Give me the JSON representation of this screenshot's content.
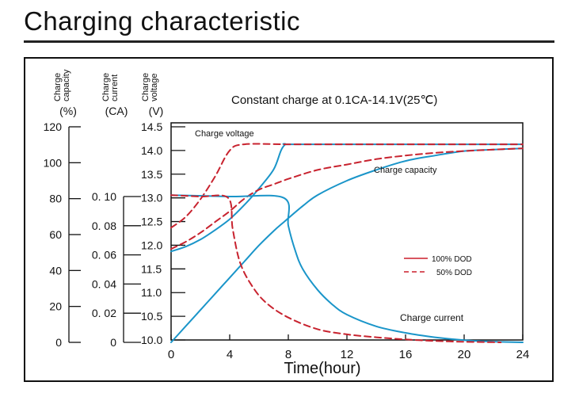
{
  "page": {
    "title": "Charging characteristic"
  },
  "chart_data": {
    "type": "line",
    "title": "Constant charge at 0.1CA-14.1V(25℃)",
    "xlabel": "Time(hour)",
    "xlim": [
      0,
      24
    ],
    "x_ticks": [
      "0",
      "4",
      "8",
      "12",
      "16",
      "20",
      "24"
    ],
    "axes": {
      "capacity": {
        "label_lines": [
          "Charge",
          "capacity",
          "(%)"
        ],
        "range": [
          0,
          120
        ],
        "ticks": [
          "0",
          "20",
          "40",
          "60",
          "80",
          "100",
          "120"
        ]
      },
      "current": {
        "label_lines": [
          "Charge",
          "current",
          "(CA)"
        ],
        "range": [
          0,
          0.1
        ],
        "ticks": [
          "0",
          "0. 02",
          "0. 04",
          "0. 06",
          "0. 08",
          "0. 10"
        ]
      },
      "voltage": {
        "label_lines": [
          "Charge",
          "voltage",
          "(V)"
        ],
        "range": [
          10.0,
          14.5
        ],
        "ticks": [
          "10.0",
          "10.5",
          "11.0",
          "11.5",
          "12.0",
          "12.5",
          "13.0",
          "13.5",
          "14.0",
          "14.5"
        ]
      }
    },
    "annotations": {
      "charge_voltage": "Charge voltage",
      "charge_capacity": "Charge  capacity",
      "charge_current": "Charge  current"
    },
    "legend": {
      "position": "center-right",
      "entries": [
        {
          "label": "100% DOD",
          "style": "solid",
          "color": "#cc1f2b"
        },
        {
          "label": "50% DOD",
          "style": "dashed",
          "color": "#cc1f2b"
        }
      ]
    },
    "colors": {
      "dod100": "#1a95c9",
      "dod50": "#c8232f",
      "axis": "#111111"
    },
    "series": [
      {
        "name": "Charge voltage 100% DOD",
        "dod": "100%",
        "axis": "voltage",
        "style": "solid",
        "points": [
          [
            0,
            11.87
          ],
          [
            1,
            11.97
          ],
          [
            2,
            12.12
          ],
          [
            3,
            12.32
          ],
          [
            4,
            12.55
          ],
          [
            5,
            12.85
          ],
          [
            6,
            13.2
          ],
          [
            7,
            13.6
          ],
          [
            7.5,
            14.0
          ],
          [
            7.8,
            14.13
          ],
          [
            8,
            14.13
          ],
          [
            12,
            14.13
          ],
          [
            16,
            14.13
          ],
          [
            20,
            14.13
          ],
          [
            24,
            14.13
          ]
        ]
      },
      {
        "name": "Charge voltage 50% DOD",
        "dod": "50%",
        "axis": "voltage",
        "style": "dashed",
        "points": [
          [
            0,
            12.37
          ],
          [
            1,
            12.6
          ],
          [
            2,
            12.97
          ],
          [
            3,
            13.45
          ],
          [
            4,
            14.0
          ],
          [
            5,
            14.13
          ],
          [
            8,
            14.13
          ],
          [
            12,
            14.13
          ],
          [
            16,
            14.13
          ],
          [
            20,
            14.13
          ],
          [
            24,
            14.13
          ]
        ]
      },
      {
        "name": "Charge capacity 100% DOD",
        "dod": "100%",
        "axis": "capacity",
        "style": "solid",
        "points": [
          [
            0,
            0
          ],
          [
            1,
            9
          ],
          [
            2,
            18
          ],
          [
            3,
            27
          ],
          [
            4,
            36
          ],
          [
            5,
            45
          ],
          [
            6,
            54
          ],
          [
            7,
            62
          ],
          [
            7.7,
            67
          ],
          [
            9,
            76
          ],
          [
            10,
            82
          ],
          [
            12,
            90
          ],
          [
            14,
            96
          ],
          [
            16,
            101
          ],
          [
            18,
            104
          ],
          [
            20,
            106.5
          ],
          [
            22,
            107.3
          ],
          [
            24,
            108
          ]
        ]
      },
      {
        "name": "Charge capacity 50% DOD",
        "dod": "50%",
        "axis": "capacity",
        "style": "dashed",
        "points": [
          [
            0,
            52
          ],
          [
            1,
            56
          ],
          [
            2,
            61
          ],
          [
            3,
            67
          ],
          [
            4,
            73
          ],
          [
            5,
            80
          ],
          [
            6,
            85
          ],
          [
            7,
            88
          ],
          [
            8,
            91
          ],
          [
            10,
            96
          ],
          [
            12,
            99
          ],
          [
            14,
            102
          ],
          [
            16,
            104
          ],
          [
            18,
            105.5
          ],
          [
            20,
            106.5
          ],
          [
            22,
            107.3
          ],
          [
            24,
            108
          ]
        ]
      },
      {
        "name": "Charge current 100% DOD",
        "dod": "100%",
        "axis": "current",
        "style": "solid",
        "points": [
          [
            0,
            0.101
          ],
          [
            4,
            0.1
          ],
          [
            7.7,
            0.099
          ],
          [
            8,
            0.08
          ],
          [
            8.5,
            0.062
          ],
          [
            9,
            0.05
          ],
          [
            10,
            0.036
          ],
          [
            11,
            0.026
          ],
          [
            12,
            0.019
          ],
          [
            14,
            0.011
          ],
          [
            16,
            0.0065
          ],
          [
            18,
            0.0035
          ],
          [
            20,
            0.0015
          ],
          [
            22,
            0.0005
          ],
          [
            24,
            0
          ]
        ]
      },
      {
        "name": "Charge current 50% DOD",
        "dod": "50%",
        "axis": "current",
        "style": "dashed",
        "points": [
          [
            0,
            0.101
          ],
          [
            2,
            0.1
          ],
          [
            3.9,
            0.099
          ],
          [
            4.2,
            0.078
          ],
          [
            4.7,
            0.055
          ],
          [
            5.5,
            0.039
          ],
          [
            6.5,
            0.027
          ],
          [
            8,
            0.017
          ],
          [
            10,
            0.009
          ],
          [
            12,
            0.0055
          ],
          [
            14,
            0.0035
          ],
          [
            16,
            0.002
          ],
          [
            18,
            0.001
          ],
          [
            20,
            0.0004
          ],
          [
            22,
            0.0001
          ],
          [
            22.5,
            0
          ]
        ]
      }
    ]
  }
}
